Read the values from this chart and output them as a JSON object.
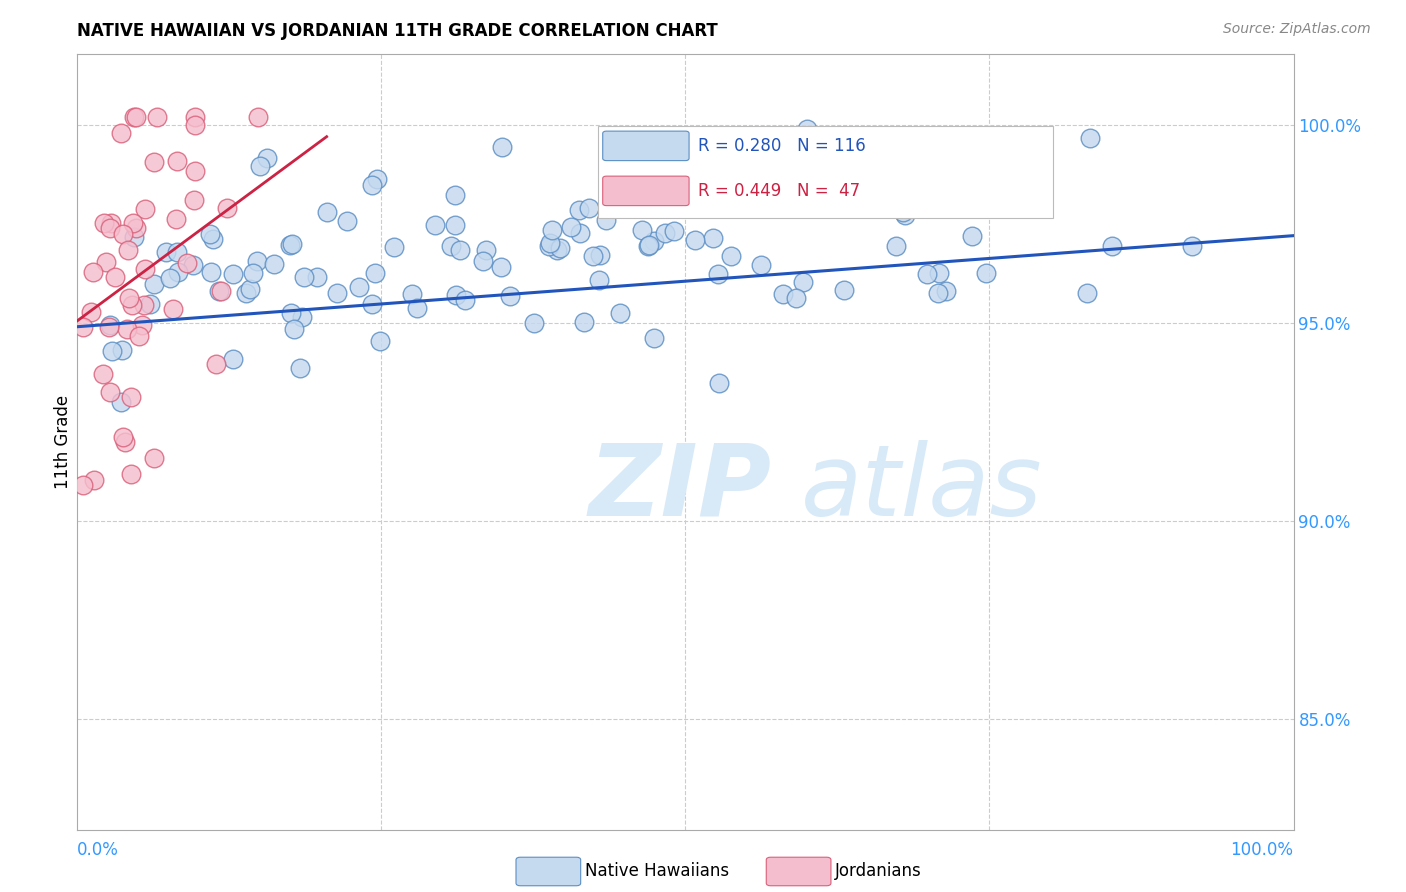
{
  "title": "NATIVE HAWAIIAN VS JORDANIAN 11TH GRADE CORRELATION CHART",
  "source": "Source: ZipAtlas.com",
  "ylabel": "11th Grade",
  "y_tick_labels": [
    "85.0%",
    "90.0%",
    "95.0%",
    "100.0%"
  ],
  "y_tick_values": [
    0.85,
    0.9,
    0.95,
    1.0
  ],
  "x_range": [
    0.0,
    1.0
  ],
  "y_range": [
    0.822,
    1.018
  ],
  "blue_color": "#c5d9ef",
  "pink_color": "#f5bece",
  "blue_edge": "#5b8ec4",
  "pink_edge": "#d9607a",
  "blue_line_color": "#2255bb",
  "pink_line_color": "#cc2244",
  "blue_R": 0.28,
  "blue_N": 116,
  "pink_R": 0.449,
  "pink_N": 47,
  "grid_color": "#cccccc",
  "spine_color": "#aaaaaa",
  "right_axis_color": "#3399ff",
  "watermark_color": "#d8eaf8",
  "blue_line_x": [
    0.0,
    1.0
  ],
  "blue_line_y": [
    0.949,
    0.972
  ],
  "pink_line_x": [
    0.0,
    0.205
  ],
  "pink_line_y": [
    0.9505,
    0.997
  ]
}
